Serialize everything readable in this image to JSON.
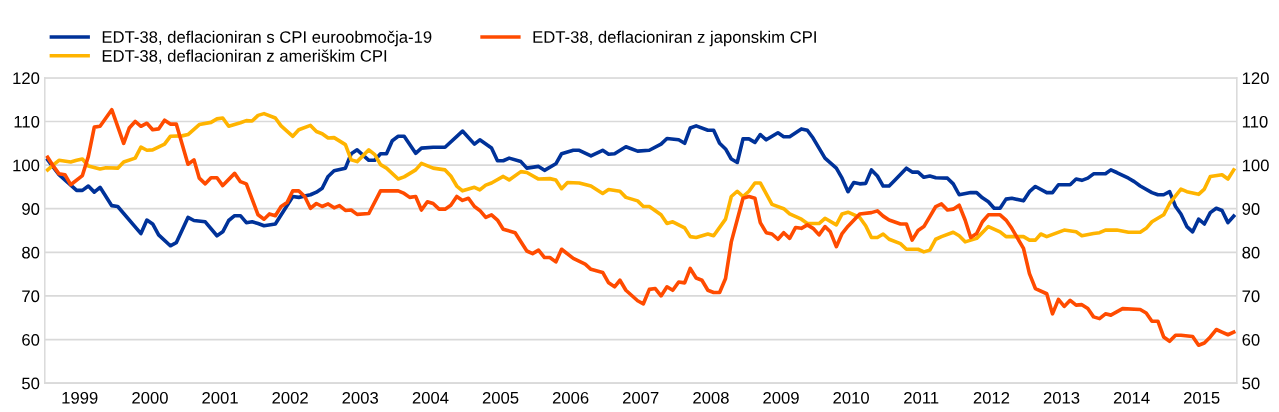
{
  "chart_data": {
    "type": "line",
    "xlim": [
      "1999-01-01",
      "2016-01-01"
    ],
    "xticks": [
      {
        "value": "1999-07-02",
        "label": "1999"
      },
      {
        "value": "2000-07-02",
        "label": "2000"
      },
      {
        "value": "2001-07-02",
        "label": "2001"
      },
      {
        "value": "2002-07-02",
        "label": "2002"
      },
      {
        "value": "2003-07-02",
        "label": "2003"
      },
      {
        "value": "2004-07-02",
        "label": "2004"
      },
      {
        "value": "2005-07-02",
        "label": "2005"
      },
      {
        "value": "2006-07-02",
        "label": "2006"
      },
      {
        "value": "2007-07-02",
        "label": "2007"
      },
      {
        "value": "2008-07-02",
        "label": "2008"
      },
      {
        "value": "2009-07-02",
        "label": "2009"
      },
      {
        "value": "2010-07-02",
        "label": "2010"
      },
      {
        "value": "2011-07-02",
        "label": "2011"
      },
      {
        "value": "2012-07-02",
        "label": "2012"
      },
      {
        "value": "2013-07-02",
        "label": "2013"
      },
      {
        "value": "2014-07-02",
        "label": "2014"
      },
      {
        "value": "2015-07-02",
        "label": "2015"
      }
    ],
    "ylim": [
      50,
      120
    ],
    "yticks": [
      50,
      60,
      70,
      80,
      90,
      100,
      110,
      120
    ],
    "y2lim": [
      50,
      120
    ],
    "y2ticks": [
      50,
      60,
      70,
      80,
      90,
      100,
      110,
      120
    ],
    "grid": "y",
    "legend": "top",
    "marker": "none",
    "line_style": "solid",
    "series": [
      {
        "name": "EDT-38, deflacioniran s CPI euroobmočja-19",
        "color": "#003299",
        "x": [
          "1999-01",
          "1999-03",
          "1999-06",
          "1999-07",
          "1999-08",
          "1999-09",
          "1999-10",
          "1999-12",
          "2000-01",
          "2000-05",
          "2000-06",
          "2000-07",
          "2000-08",
          "2000-10",
          "2000-11",
          "2001-01",
          "2001-02",
          "2001-04",
          "2001-06",
          "2001-07",
          "2001-08",
          "2001-09",
          "2001-10",
          "2001-11",
          "2001-12",
          "2002-01",
          "2002-02",
          "2002-04",
          "2002-07",
          "2002-08",
          "2002-10",
          "2002-11",
          "2002-12",
          "2003-01",
          "2003-02",
          "2003-04",
          "2003-05",
          "2003-06",
          "2003-08",
          "2003-09",
          "2003-10",
          "2003-11",
          "2003-12",
          "2004-01",
          "2004-02",
          "2004-04",
          "2004-05",
          "2004-07",
          "2004-09",
          "2004-12",
          "2005-02",
          "2005-03",
          "2005-05",
          "2005-06",
          "2005-07",
          "2005-08",
          "2005-10",
          "2005-11",
          "2006-01",
          "2006-02",
          "2006-04",
          "2006-05",
          "2006-07",
          "2006-08",
          "2006-10",
          "2006-12",
          "2007-01",
          "2007-02",
          "2007-04",
          "2007-06",
          "2007-08",
          "2007-10",
          "2007-11",
          "2008-01",
          "2008-02",
          "2008-03",
          "2008-04",
          "2008-06",
          "2008-07",
          "2008-08",
          "2008-09",
          "2008-10",
          "2008-11",
          "2008-12",
          "2009-01",
          "2009-02",
          "2009-03",
          "2009-04",
          "2009-06",
          "2009-07",
          "2009-08",
          "2009-10",
          "2009-11",
          "2009-12",
          "2010-02",
          "2010-04",
          "2010-05",
          "2010-06",
          "2010-07",
          "2010-08",
          "2010-09",
          "2010-10",
          "2010-11",
          "2010-12",
          "2011-01",
          "2011-02",
          "2011-04",
          "2011-05",
          "2011-06",
          "2011-07",
          "2011-08",
          "2011-09",
          "2011-11",
          "2011-12",
          "2012-01",
          "2012-03",
          "2012-04",
          "2012-05",
          "2012-06",
          "2012-07",
          "2012-08",
          "2012-09",
          "2012-10",
          "2012-12",
          "2013-01",
          "2013-02",
          "2013-04",
          "2013-05",
          "2013-06",
          "2013-08",
          "2013-09",
          "2013-10",
          "2013-11",
          "2013-12",
          "2014-02",
          "2014-03",
          "2014-04",
          "2014-06",
          "2014-07",
          "2014-08",
          "2014-10",
          "2014-11",
          "2014-12",
          "2015-01",
          "2015-02",
          "2015-03",
          "2015-04",
          "2015-05",
          "2015-06",
          "2015-07",
          "2015-08",
          "2015-09",
          "2015-10",
          "2015-11",
          "2015-12"
        ],
        "values": [
          101.2,
          97.8,
          94.2,
          94.2,
          95.2,
          93.8,
          94.9,
          90.7,
          90.5,
          84.3,
          87.4,
          86.5,
          84,
          81.5,
          82.2,
          88,
          87.3,
          87,
          83.8,
          84.7,
          87.3,
          88.4,
          88.4,
          86.8,
          87,
          86.6,
          86.1,
          86.5,
          92.8,
          92.6,
          93.2,
          93.8,
          94.7,
          97.4,
          98.7,
          99.3,
          102.6,
          103.5,
          101.1,
          101.1,
          102.6,
          102.6,
          105.6,
          106.6,
          106.6,
          102.7,
          103.9,
          104.1,
          104.1,
          107.8,
          104.8,
          105.8,
          103.9,
          101,
          101,
          101.6,
          100.8,
          99.3,
          99.7,
          98.8,
          100.3,
          102.6,
          103.4,
          103.4,
          102.1,
          103.4,
          102.5,
          102.6,
          104.2,
          103.2,
          103.4,
          104.8,
          106.1,
          105.8,
          105,
          108.5,
          109,
          108,
          108,
          105,
          103.7,
          101.4,
          100.6,
          106,
          106,
          105.2,
          107,
          105.8,
          107.4,
          106.5,
          106.5,
          108.3,
          108,
          106.2,
          101.6,
          99.3,
          97,
          93.9,
          96,
          95.7,
          95.8,
          98.9,
          97.5,
          95.2,
          95.2,
          96.6,
          99.3,
          98.4,
          98.4,
          97.2,
          97.5,
          97.1,
          97,
          95.7,
          93.2,
          93.7,
          93.7,
          92.5,
          91.6,
          90.1,
          90.1,
          92.2,
          92.4,
          91.8,
          93.9,
          95.1,
          93.7,
          93.7,
          95.5,
          95.5,
          96.8,
          96.5,
          97,
          98,
          98,
          98.9,
          98.3,
          97,
          96.2,
          95.2,
          93.7,
          93.2,
          93.2,
          93.9,
          90.5,
          88.8,
          85.9,
          84.7,
          87.6,
          86.5,
          89.1,
          90.1,
          89.6,
          86.8,
          88.3
        ]
      },
      {
        "name": "EDT-38, deflacioniran z ameriškim CPI",
        "color": "#ffb400",
        "x": [
          "1999-01",
          "1999-02",
          "1999-03",
          "1999-05",
          "1999-06",
          "1999-07",
          "1999-08",
          "1999-10",
          "1999-11",
          "2000-01",
          "2000-02",
          "2000-04",
          "2000-05",
          "2000-06",
          "2000-07",
          "2000-09",
          "2000-10",
          "2000-12",
          "2001-01",
          "2001-03",
          "2001-05",
          "2001-06",
          "2001-07",
          "2001-08",
          "2001-10",
          "2001-11",
          "2001-12",
          "2002-01",
          "2002-02",
          "2002-04",
          "2002-05",
          "2002-07",
          "2002-08",
          "2002-10",
          "2002-11",
          "2002-12",
          "2003-01",
          "2003-02",
          "2003-04",
          "2003-05",
          "2003-06",
          "2003-08",
          "2003-09",
          "2003-10",
          "2003-11",
          "2004-01",
          "2004-02",
          "2004-04",
          "2004-05",
          "2004-07",
          "2004-09",
          "2004-10",
          "2004-11",
          "2004-12",
          "2005-02",
          "2005-03",
          "2005-04",
          "2005-05",
          "2005-07",
          "2005-08",
          "2005-10",
          "2005-11",
          "2006-01",
          "2006-03",
          "2006-04",
          "2006-05",
          "2006-06",
          "2006-08",
          "2006-10",
          "2006-12",
          "2007-01",
          "2007-03",
          "2007-04",
          "2007-06",
          "2007-07",
          "2007-08",
          "2007-10",
          "2007-11",
          "2007-12",
          "2008-02",
          "2008-03",
          "2008-04",
          "2008-06",
          "2008-07",
          "2008-09",
          "2008-10",
          "2008-11",
          "2008-12",
          "2009-01",
          "2009-02",
          "2009-03",
          "2009-05",
          "2009-07",
          "2009-08",
          "2009-10",
          "2009-11",
          "2010-01",
          "2010-02",
          "2010-04",
          "2010-05",
          "2010-06",
          "2010-08",
          "2010-09",
          "2010-10",
          "2010-11",
          "2010-12",
          "2011-01",
          "2011-03",
          "2011-04",
          "2011-06",
          "2011-07",
          "2011-08",
          "2011-09",
          "2011-10",
          "2011-12",
          "2012-01",
          "2012-02",
          "2012-04",
          "2012-06",
          "2012-08",
          "2012-09",
          "2012-12",
          "2013-01",
          "2013-02",
          "2013-03",
          "2013-04",
          "2013-07",
          "2013-09",
          "2013-10",
          "2013-12",
          "2014-01",
          "2014-02",
          "2014-04",
          "2014-06",
          "2014-08",
          "2014-09",
          "2014-10",
          "2014-12",
          "2015-01",
          "2015-03",
          "2015-04",
          "2015-06",
          "2015-07",
          "2015-08",
          "2015-10",
          "2015-11",
          "2015-12"
        ],
        "values": [
          98.9,
          100.1,
          101.1,
          100.7,
          101.1,
          101.4,
          99.8,
          99.1,
          99.4,
          99.3,
          100.7,
          101.6,
          104.1,
          103.4,
          103.5,
          104.8,
          106.6,
          106.7,
          107,
          109.3,
          109.8,
          110.6,
          110.8,
          108.9,
          109.7,
          110.2,
          110.1,
          111.4,
          111.8,
          110.8,
          109,
          106.6,
          108.1,
          109.1,
          107.7,
          107.2,
          106.2,
          106.3,
          104.7,
          101.2,
          100.8,
          103.5,
          102.4,
          100.1,
          99.3,
          96.8,
          97.3,
          98.9,
          100.4,
          99.3,
          98.9,
          97.5,
          95.2,
          94.1,
          94.9,
          94.3,
          95.4,
          95.9,
          97.4,
          96.6,
          98.5,
          98.3,
          96.8,
          96.9,
          96.6,
          94.6,
          96,
          95.9,
          95.2,
          93.5,
          94.4,
          94,
          92.6,
          91.8,
          90.5,
          90.5,
          88.6,
          86.6,
          87,
          85.6,
          83.6,
          83.4,
          84.2,
          83.8,
          87.6,
          92.8,
          94,
          92.8,
          94,
          95.9,
          95.9,
          91,
          90,
          88.8,
          87.6,
          86.6,
          86.6,
          87.8,
          86.3,
          88.8,
          89.2,
          88,
          86.1,
          83.4,
          83.4,
          84.2,
          83,
          82,
          80.7,
          80.7,
          80.1,
          80.5,
          83,
          83.6,
          84.6,
          83.8,
          82.4,
          83.2,
          85.9,
          84.7,
          83.6,
          83.6,
          82.8,
          82.8,
          84.2,
          83.6,
          85.1,
          84.7,
          83.8,
          84.3,
          84.5,
          85.1,
          85.1,
          84.6,
          84.6,
          85.5,
          87,
          88.6,
          91.2,
          94.5,
          93.9,
          93.3,
          94.5,
          97.4,
          97.8,
          96.8,
          98.9
        ]
      },
      {
        "name": "EDT-38, deflacioniran z japonskim CPI",
        "color": "#ff4b00",
        "x": [
          "1999-01",
          "1999-02",
          "1999-03",
          "1999-04",
          "1999-05",
          "1999-07",
          "1999-08",
          "1999-09",
          "1999-10",
          "1999-12",
          "2000-02",
          "2000-03",
          "2000-04",
          "2000-05",
          "2000-06",
          "2000-07",
          "2000-08",
          "2000-09",
          "2000-10",
          "2000-11",
          "2001-01",
          "2001-02",
          "2001-03",
          "2001-04",
          "2001-05",
          "2001-06",
          "2001-07",
          "2001-09",
          "2001-10",
          "2001-11",
          "2002-01",
          "2002-02",
          "2002-03",
          "2002-04",
          "2002-05",
          "2002-06",
          "2002-07",
          "2002-08",
          "2002-09",
          "2002-10",
          "2002-11",
          "2002-12",
          "2003-01",
          "2003-02",
          "2003-03",
          "2003-04",
          "2003-05",
          "2003-06",
          "2003-08",
          "2003-10",
          "2004-01",
          "2004-02",
          "2004-03",
          "2004-04",
          "2004-05",
          "2004-06",
          "2004-07",
          "2004-08",
          "2004-09",
          "2004-10",
          "2004-11",
          "2004-12",
          "2005-01",
          "2005-02",
          "2005-03",
          "2005-04",
          "2005-05",
          "2005-06",
          "2005-07",
          "2005-09",
          "2005-11",
          "2005-12",
          "2006-01",
          "2006-02",
          "2006-03",
          "2006-04",
          "2006-05",
          "2006-07",
          "2006-09",
          "2006-10",
          "2006-12",
          "2007-01",
          "2007-02",
          "2007-03",
          "2007-04",
          "2007-06",
          "2007-07",
          "2007-08",
          "2007-09",
          "2007-10",
          "2007-11",
          "2007-12",
          "2008-01",
          "2008-02",
          "2008-03",
          "2008-04",
          "2008-05",
          "2008-06",
          "2008-07",
          "2008-08",
          "2008-09",
          "2008-10",
          "2008-12",
          "2009-01",
          "2009-02",
          "2009-03",
          "2009-04",
          "2009-05",
          "2009-06",
          "2009-07",
          "2009-08",
          "2009-09",
          "2009-10",
          "2009-11",
          "2009-12",
          "2010-01",
          "2010-02",
          "2010-03",
          "2010-04",
          "2010-05",
          "2010-06",
          "2010-08",
          "2010-10",
          "2010-11",
          "2010-12",
          "2011-01",
          "2011-03",
          "2011-04",
          "2011-05",
          "2011-06",
          "2011-07",
          "2011-08",
          "2011-09",
          "2011-10",
          "2011-11",
          "2011-12",
          "2012-01",
          "2012-02",
          "2012-03",
          "2012-04",
          "2012-05",
          "2012-06",
          "2012-08",
          "2012-09",
          "2012-10",
          "2012-12",
          "2013-01",
          "2013-02",
          "2013-04",
          "2013-05",
          "2013-06",
          "2013-07",
          "2013-08",
          "2013-09",
          "2013-10",
          "2013-11",
          "2013-12",
          "2014-01",
          "2014-02",
          "2014-03",
          "2014-05",
          "2014-08",
          "2014-09",
          "2014-10",
          "2014-11",
          "2014-12",
          "2015-01",
          "2015-02",
          "2015-03",
          "2015-05",
          "2015-06",
          "2015-07",
          "2015-08",
          "2015-09",
          "2015-10",
          "2015-11",
          "2015-12"
        ],
        "values": [
          101.8,
          99.7,
          98,
          97.8,
          95.5,
          97.6,
          102,
          108.7,
          108.9,
          112.7,
          105,
          108.5,
          110,
          108.9,
          109.6,
          108.1,
          108.3,
          110.3,
          109.4,
          109.4,
          100.2,
          101.2,
          97,
          95.7,
          97.1,
          97.1,
          95.3,
          98.1,
          96.2,
          95.7,
          88.6,
          87.6,
          88.8,
          88.4,
          90.5,
          91.4,
          94.1,
          94.1,
          92.8,
          90.1,
          91.2,
          90.5,
          91.1,
          90.2,
          90.7,
          89.6,
          89.7,
          88.7,
          88.9,
          94.1,
          94.1,
          93.5,
          92.6,
          92.8,
          89.7,
          91.6,
          91.2,
          89.9,
          89.9,
          90.8,
          92.8,
          91.9,
          92.4,
          90.5,
          89.6,
          88,
          88.6,
          87.4,
          85.3,
          84.5,
          80.3,
          79.7,
          80.5,
          78.8,
          78.8,
          77.8,
          80.7,
          78.6,
          77.3,
          76.1,
          75.4,
          73,
          72.1,
          73.6,
          71.3,
          68.9,
          68.2,
          71.5,
          71.7,
          70,
          72.1,
          71.3,
          73.2,
          73,
          76.3,
          74.1,
          73.6,
          71.3,
          70.8,
          70.8,
          74,
          82.4,
          92.4,
          92.8,
          92.4,
          86.8,
          84.5,
          84.2,
          83,
          84.5,
          83.2,
          85.7,
          85.5,
          86.3,
          85.5,
          84,
          85.9,
          84.7,
          81.3,
          84.3,
          86,
          88.8,
          89.1,
          89.5,
          88.3,
          87.4,
          86.5,
          86.5,
          82.8,
          85,
          85.9,
          88.2,
          90.5,
          91.1,
          89.7,
          89.9,
          90.8,
          87.4,
          83.4,
          84.3,
          87,
          88.6,
          88.6,
          87.4,
          85.5,
          80.9,
          75.1,
          71.7,
          70.5,
          65.9,
          69.2,
          67.6,
          69,
          67.9,
          68,
          67.1,
          65.2,
          64.8,
          65.9,
          65.6,
          67.1,
          66.9,
          66.1,
          64.2,
          64.2,
          60.6,
          59.6,
          61,
          61,
          60.7,
          58.7,
          59.2,
          60.6,
          62.3,
          61.7,
          61.1,
          61.7
        ]
      }
    ]
  }
}
